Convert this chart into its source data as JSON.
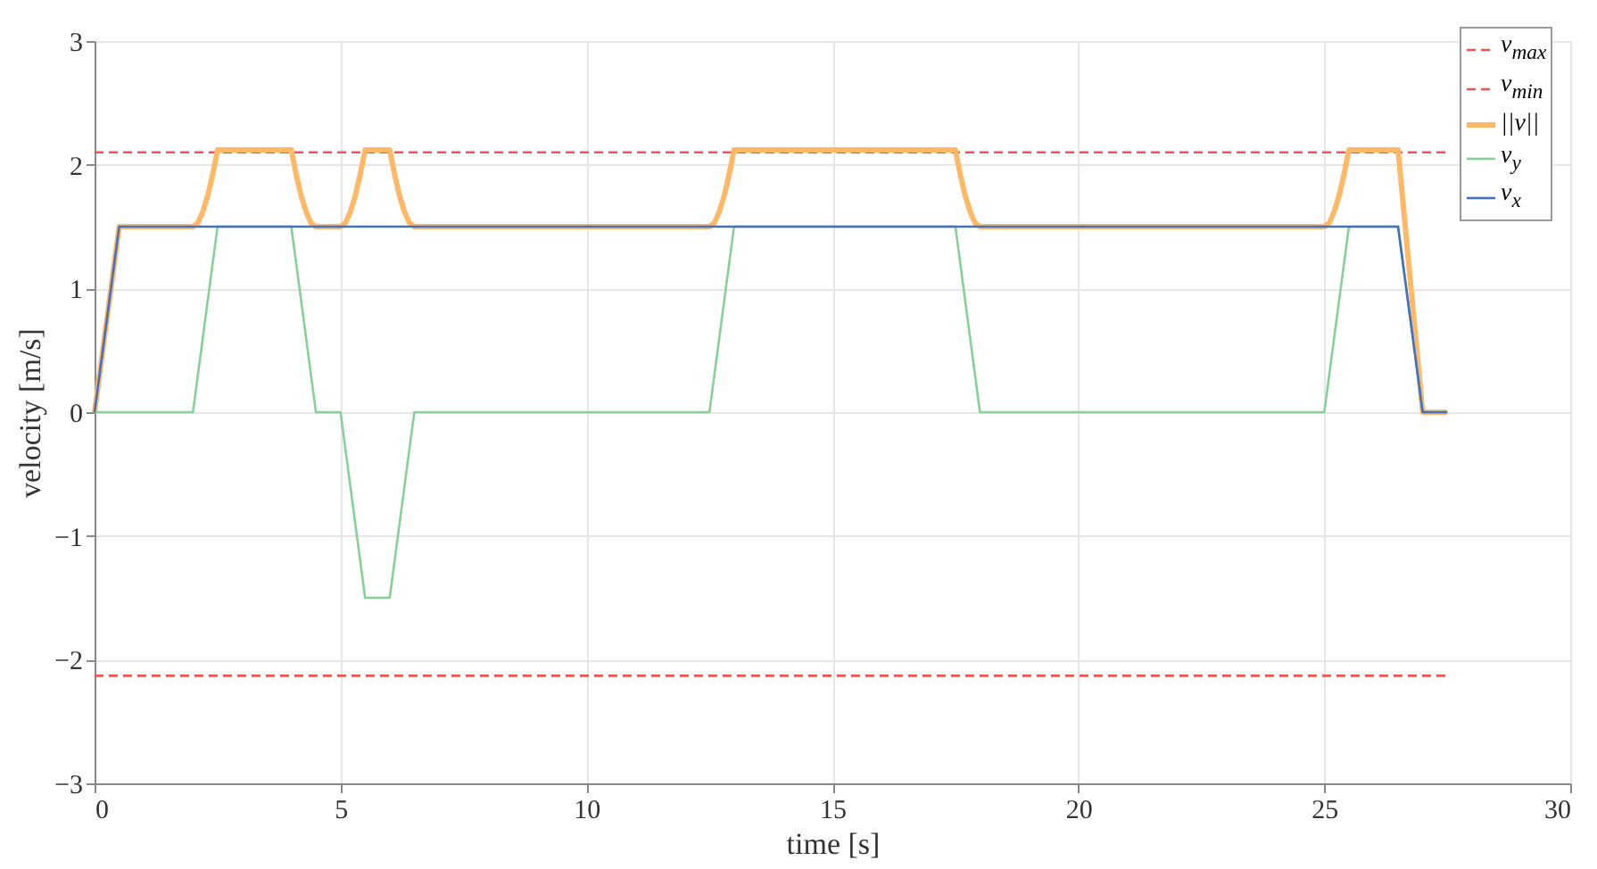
{
  "chart_data": {
    "type": "line",
    "xlabel": "time [s]",
    "ylabel": "velocity [m/s]",
    "xlim": [
      0,
      30
    ],
    "ylim": [
      -3,
      3
    ],
    "xticks": [
      0,
      5,
      10,
      15,
      20,
      25,
      30
    ],
    "yticks": [
      -3,
      -2,
      -1,
      0,
      1,
      2,
      3
    ],
    "grid": true,
    "legend": "top right",
    "marker": "none",
    "series": [
      {
        "name": "v$_{max}$",
        "color": "#f05454",
        "line_style": "dashed",
        "x": [
          0,
          27.5
        ],
        "values": [
          2.1,
          2.1
        ]
      },
      {
        "name": "v$_{min}$",
        "color": "#f05454",
        "line_style": "dashed",
        "x": [
          0,
          27.5
        ],
        "values": [
          -2.13,
          -2.13
        ]
      },
      {
        "name": "||v||",
        "color": "#ffb866",
        "line_style": "solid",
        "x": [
          0,
          0.5,
          2,
          2.1,
          2.2,
          2.3,
          2.4,
          2.5,
          4,
          4.1,
          4.2,
          4.3,
          4.4,
          4.5,
          5,
          5.1,
          5.2,
          5.3,
          5.4,
          5.5,
          6,
          6.1,
          6.2,
          6.3,
          6.4,
          6.5,
          12.5,
          12.6,
          12.7,
          12.8,
          12.9,
          13,
          17.5,
          17.6,
          17.7,
          17.8,
          17.9,
          18,
          25,
          25.1,
          25.2,
          25.3,
          25.4,
          25.5,
          26.5,
          27,
          27.5
        ],
        "values": [
          0,
          1.5,
          1.5,
          1.53,
          1.62,
          1.75,
          1.92,
          2.12,
          2.12,
          1.92,
          1.75,
          1.62,
          1.53,
          1.5,
          1.5,
          1.53,
          1.62,
          1.75,
          1.92,
          2.12,
          2.12,
          1.92,
          1.75,
          1.62,
          1.53,
          1.5,
          1.5,
          1.53,
          1.62,
          1.75,
          1.92,
          2.12,
          2.12,
          1.92,
          1.75,
          1.62,
          1.53,
          1.5,
          1.5,
          1.53,
          1.62,
          1.75,
          1.92,
          2.12,
          2.12,
          0,
          0
        ]
      },
      {
        "name": "v$_{y}$",
        "color": "#88d098",
        "line_style": "solid",
        "x": [
          0,
          2,
          2.5,
          4,
          4.5,
          5,
          5.5,
          6,
          6.5,
          12.5,
          13,
          17.5,
          18,
          25,
          25.5,
          26.5,
          27,
          27.5
        ],
        "values": [
          0,
          0,
          1.5,
          1.5,
          0,
          0,
          -1.5,
          -1.5,
          0,
          0,
          1.5,
          1.5,
          0,
          0,
          1.5,
          1.5,
          0,
          0
        ]
      },
      {
        "name": "v$_{x}$",
        "color": "#4470c4",
        "line_style": "solid",
        "x": [
          0,
          0.5,
          26.5,
          27,
          27.5
        ],
        "values": [
          0,
          1.5,
          1.5,
          0,
          0
        ]
      }
    ]
  }
}
